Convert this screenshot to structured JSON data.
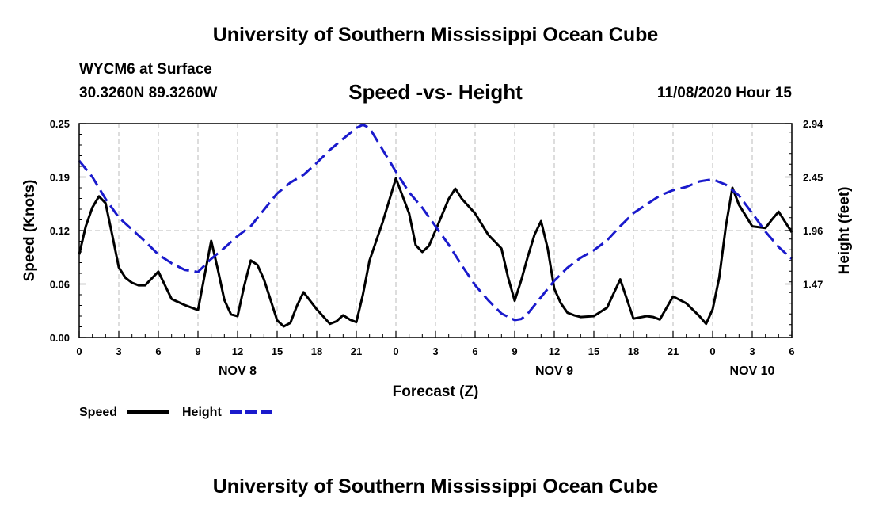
{
  "header": {
    "title": "University of Southern Mississippi Ocean Cube",
    "station": "WYCM6 at Surface",
    "coords": "30.3260N 89.3260W",
    "subtitle": "Speed -vs- Height",
    "datetime": "11/08/2020 Hour 15"
  },
  "footer": {
    "title": "University of Southern Mississippi Ocean Cube"
  },
  "colors": {
    "speed": "#000000",
    "height": "#1a1acc",
    "grid": "#bbbbbb"
  },
  "chart_data": {
    "type": "line",
    "title": "Speed -vs- Height",
    "xlabel": "Forecast (Z)",
    "ylabel_left": "Speed (Knots)",
    "ylabel_right": "Height (feet)",
    "x_range": [
      0,
      54
    ],
    "y_left_range": [
      0,
      0.25
    ],
    "y_right_range": [
      0.98,
      2.94
    ],
    "x_ticks": [
      0,
      3,
      6,
      9,
      12,
      15,
      18,
      21,
      24,
      27,
      30,
      33,
      36,
      39,
      42,
      45,
      48,
      51,
      54
    ],
    "x_tick_labels": [
      "0",
      "3",
      "6",
      "9",
      "12",
      "15",
      "18",
      "21",
      "0",
      "3",
      "6",
      "9",
      "12",
      "15",
      "18",
      "21",
      "0",
      "3",
      "6"
    ],
    "day_labels": [
      {
        "x": 12,
        "label": "NOV 8"
      },
      {
        "x": 36,
        "label": "NOV 9"
      },
      {
        "x": 51,
        "label": "NOV 10"
      }
    ],
    "y_left_ticks": [
      0.0,
      0.0625,
      0.125,
      0.1875,
      0.25
    ],
    "y_left_tick_labels": [
      "0.00",
      "0.06",
      "0.12",
      "0.19",
      "0.25"
    ],
    "y_right_ticks": [
      1.47,
      1.96,
      2.45,
      2.94
    ],
    "y_right_tick_labels": [
      "1.47",
      "1.96",
      "2.45",
      "2.94"
    ],
    "grid": true,
    "legend": {
      "position": "bottom-left",
      "speed_label": "Speed",
      "height_label": "Height"
    },
    "series": [
      {
        "name": "Speed",
        "axis": "left",
        "style": "solid",
        "x": [
          0,
          0.5,
          1,
          1.5,
          2,
          2.5,
          3,
          3.5,
          4,
          4.5,
          5,
          6,
          7,
          8,
          9,
          10,
          10.5,
          11,
          11.5,
          12,
          12.5,
          13,
          13.5,
          14,
          14.5,
          15,
          15.5,
          16,
          16.5,
          17,
          18,
          19,
          19.5,
          20,
          20.5,
          21,
          21.5,
          22,
          23,
          24,
          25,
          25.5,
          26,
          26.5,
          27,
          28,
          28.5,
          29,
          30,
          31,
          31.5,
          32,
          32.5,
          33,
          33.5,
          34,
          34.5,
          35,
          35.5,
          36,
          36.5,
          37,
          37.5,
          38,
          39,
          40,
          41,
          42,
          43,
          43.5,
          44,
          45,
          46,
          47,
          47.5,
          48,
          48.5,
          49,
          49.5,
          50,
          51,
          52,
          52.5,
          53,
          54
        ],
        "values": [
          0.097,
          0.13,
          0.152,
          0.165,
          0.157,
          0.12,
          0.082,
          0.07,
          0.064,
          0.061,
          0.061,
          0.077,
          0.045,
          0.038,
          0.032,
          0.113,
          0.08,
          0.044,
          0.027,
          0.025,
          0.06,
          0.09,
          0.085,
          0.068,
          0.044,
          0.02,
          0.013,
          0.017,
          0.037,
          0.053,
          0.033,
          0.016,
          0.019,
          0.026,
          0.021,
          0.018,
          0.05,
          0.09,
          0.135,
          0.186,
          0.145,
          0.108,
          0.1,
          0.107,
          0.125,
          0.162,
          0.174,
          0.162,
          0.145,
          0.12,
          0.112,
          0.104,
          0.07,
          0.043,
          0.067,
          0.095,
          0.12,
          0.136,
          0.104,
          0.057,
          0.04,
          0.029,
          0.026,
          0.024,
          0.025,
          0.035,
          0.068,
          0.022,
          0.025,
          0.024,
          0.021,
          0.048,
          0.04,
          0.025,
          0.016,
          0.033,
          0.07,
          0.13,
          0.175,
          0.155,
          0.13,
          0.128,
          0.138,
          0.147,
          0.123
        ]
      },
      {
        "name": "Height",
        "axis": "right",
        "style": "dashed",
        "x": [
          0,
          1,
          2,
          3,
          4,
          5,
          6,
          7,
          8,
          9,
          10,
          11,
          12,
          13,
          14,
          15,
          16,
          17,
          18,
          19,
          20,
          21,
          21.5,
          22,
          23,
          24,
          25,
          26,
          27,
          28,
          29,
          30,
          31,
          32,
          33,
          33.5,
          34,
          35,
          36,
          37,
          38,
          39,
          40,
          41,
          42,
          43,
          44,
          45,
          46,
          47,
          48,
          49,
          50,
          51,
          52,
          53,
          54
        ],
        "values": [
          2.6,
          2.45,
          2.25,
          2.08,
          1.97,
          1.86,
          1.74,
          1.66,
          1.6,
          1.58,
          1.7,
          1.8,
          1.91,
          2.0,
          2.15,
          2.3,
          2.4,
          2.47,
          2.58,
          2.7,
          2.8,
          2.9,
          2.93,
          2.9,
          2.7,
          2.5,
          2.31,
          2.17,
          2.0,
          1.83,
          1.64,
          1.46,
          1.32,
          1.2,
          1.14,
          1.15,
          1.2,
          1.35,
          1.5,
          1.62,
          1.71,
          1.78,
          1.87,
          2.0,
          2.12,
          2.2,
          2.28,
          2.33,
          2.36,
          2.41,
          2.43,
          2.38,
          2.28,
          2.12,
          1.95,
          1.81,
          1.7
        ]
      }
    ]
  }
}
